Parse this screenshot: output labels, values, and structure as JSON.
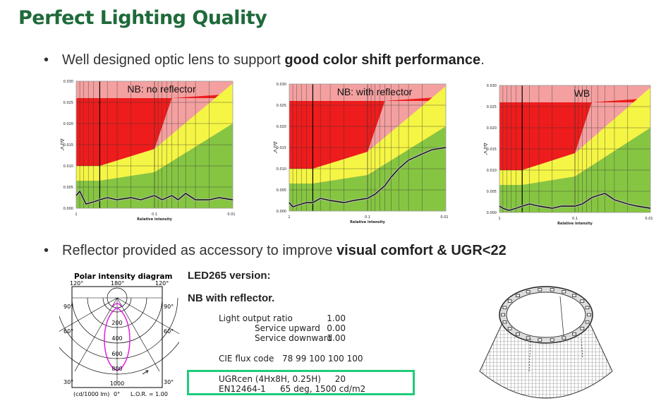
{
  "title": "Perfect Lighting Quality",
  "bullet1": {
    "prefix": "Well designed optic lens to support ",
    "bold": "good color shift performance",
    "suffix": "."
  },
  "bullet2": {
    "prefix": "Reflector provided as accessory to improve ",
    "bold": "visual comfort & UGR<22"
  },
  "chart_data": [
    {
      "type": "line",
      "title": "NB: no reflector",
      "xlabel": "Relative intensity",
      "ylabel": "Δu'v'",
      "x_scale": "log",
      "x_ticks": [
        "1",
        "0.1",
        "0.01"
      ],
      "ylim": [
        0,
        0.03
      ],
      "y_ticks": [
        "0.000",
        "0.005",
        "0.010",
        "0.015",
        "0.020",
        "0.025",
        "0.030"
      ],
      "series": [
        {
          "x": [
            1,
            0.9,
            0.75,
            0.6,
            0.5,
            0.4,
            0.3,
            0.2,
            0.15,
            0.1,
            0.08,
            0.06,
            0.05,
            0.04,
            0.03,
            0.02,
            0.015,
            0.01
          ],
          "y": [
            0.003,
            0.004,
            0.001,
            0.0015,
            0.002,
            0.0025,
            0.002,
            0.0025,
            0.002,
            0.003,
            0.002,
            0.003,
            0.002,
            0.0035,
            0.002,
            0.002,
            0.0025,
            0.002
          ]
        }
      ]
    },
    {
      "type": "line",
      "title": "NB: with reflector",
      "xlabel": "Relative intensity",
      "ylabel": "Δu'v'",
      "x_scale": "log",
      "x_ticks": [
        "1",
        "0.1",
        "0.01"
      ],
      "ylim": [
        0,
        0.03
      ],
      "y_ticks": [
        "0.000",
        "0.005",
        "0.010",
        "0.015",
        "0.020",
        "0.025",
        "0.030"
      ],
      "series": [
        {
          "x": [
            1,
            0.9,
            0.75,
            0.6,
            0.5,
            0.4,
            0.3,
            0.2,
            0.15,
            0.1,
            0.08,
            0.06,
            0.05,
            0.04,
            0.03,
            0.02,
            0.015,
            0.01
          ],
          "y": [
            0.002,
            0.001,
            0.0015,
            0.002,
            0.002,
            0.003,
            0.0025,
            0.002,
            0.0025,
            0.003,
            0.004,
            0.006,
            0.008,
            0.01,
            0.012,
            0.0135,
            0.0145,
            0.015
          ]
        }
      ]
    },
    {
      "type": "line",
      "title": "WB",
      "xlabel": "Relative intensity",
      "ylabel": "Δu'v'",
      "x_scale": "log",
      "x_ticks": [
        "1",
        "0.1",
        "0.01"
      ],
      "ylim": [
        0,
        0.03
      ],
      "y_ticks": [
        "0.000",
        "0.005",
        "0.010",
        "0.015",
        "0.020",
        "0.025",
        "0.030"
      ],
      "series": [
        {
          "x": [
            1,
            0.9,
            0.75,
            0.6,
            0.5,
            0.4,
            0.3,
            0.2,
            0.15,
            0.1,
            0.08,
            0.06,
            0.05,
            0.04,
            0.03,
            0.02,
            0.015,
            0.01
          ],
          "y": [
            0.0015,
            0.001,
            0.0005,
            0.001,
            0.0015,
            0.002,
            0.0015,
            0.001,
            0.0015,
            0.0015,
            0.002,
            0.0035,
            0.004,
            0.0045,
            0.003,
            0.002,
            0.0015,
            0.001
          ]
        }
      ]
    }
  ],
  "polar": {
    "title": "Polar intensity diagram",
    "top_labels": [
      "120°",
      "180°",
      "120°"
    ],
    "side_labels": [
      "90°",
      "60°",
      "30°"
    ],
    "radial_labels": [
      "200",
      "400",
      "600",
      "800",
      "1000"
    ],
    "bottom_labels": [
      "(cd/1000 lm)",
      "0°",
      "L.O.R. = 1.00"
    ]
  },
  "specs": {
    "version": "LED265 version:",
    "variant": "NB with reflector.",
    "rows": [
      {
        "label": "Light output ratio",
        "value": "1.00",
        "indent": false
      },
      {
        "label": "Service upward",
        "value": "0.00",
        "indent": true
      },
      {
        "label": "Service downward",
        "value": "1.00",
        "indent": true
      }
    ],
    "cie_label": "CIE flux code",
    "cie_value": "78 99 100 100 100",
    "ugr_label": "UGRcen (4Hx8H, 0.25H)",
    "ugr_value": "20",
    "en_label": "EN12464-1",
    "en_value": "65 deg, 1500 cd/m2"
  },
  "colors": {
    "title": "#1f6a3a",
    "pink": "#f4a0a0",
    "red": "#ee1c1c",
    "yellow": "#f5f545",
    "green": "#86c542",
    "highlight": "#1fcc7a",
    "curve": "#e020e0"
  }
}
